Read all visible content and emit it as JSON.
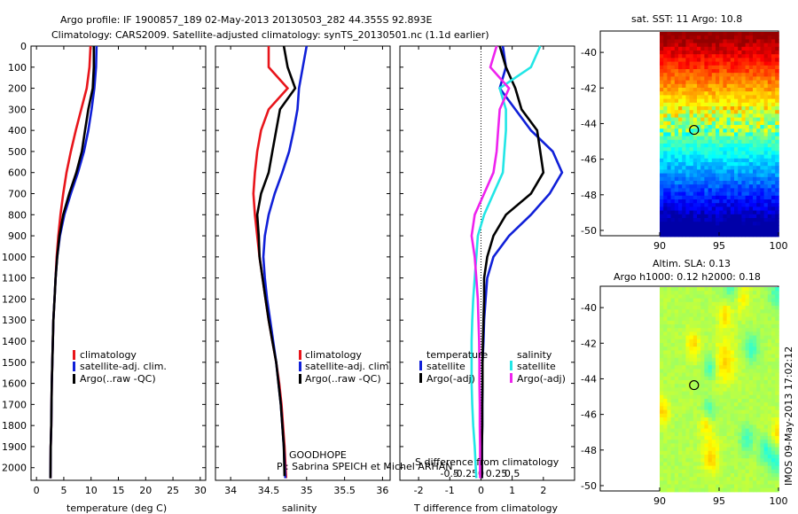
{
  "header": {
    "line1": "Argo profile: IF 1900857_189 02-May-2013 20130503_282 44.355S 92.893E",
    "line2": "Climatology: CARS2009. Satellite-adjusted climatology: synTS_20130501.nc (1.1d earlier)"
  },
  "watermark": "IMOS 09-May-2013 17:02:12",
  "colors": {
    "clim": "#e8151b",
    "sat": "#1020d8",
    "argo": "#000000",
    "cyan": "#22e6e6",
    "magenta": "#ee22ee"
  },
  "chart_data": [
    {
      "id": "temp",
      "type": "line",
      "xlabel": "temperature (deg C)",
      "xlim": [
        -1,
        31
      ],
      "xticks": [
        0,
        5,
        10,
        15,
        20,
        25,
        30
      ],
      "ylim": [
        2060,
        0
      ],
      "yticks": [
        0,
        100,
        200,
        300,
        400,
        500,
        600,
        700,
        800,
        900,
        1000,
        1100,
        1200,
        1300,
        1400,
        1500,
        1600,
        1700,
        1800,
        1900,
        2000
      ],
      "legend": [
        "climatology",
        "satellite-adj. clim.",
        "Argo(..raw -QC)"
      ],
      "series": [
        {
          "key": "clim",
          "x": [
            9.9,
            9.7,
            9.2,
            8.2,
            7.2,
            6.3,
            5.5,
            4.9,
            4.4,
            4.0,
            3.7,
            3.5,
            3.3,
            3.1,
            3.0,
            2.9,
            2.8,
            2.75,
            2.7,
            2.6,
            2.55
          ],
          "y": [
            0,
            100,
            200,
            300,
            400,
            500,
            600,
            700,
            800,
            900,
            1000,
            1100,
            1200,
            1300,
            1400,
            1500,
            1600,
            1700,
            1800,
            1900,
            2050
          ]
        },
        {
          "key": "sat",
          "x": [
            11.0,
            10.9,
            10.6,
            10.1,
            9.5,
            8.7,
            7.6,
            6.3,
            5.1,
            4.3,
            3.8,
            3.5,
            3.3,
            3.1,
            3.0,
            2.9,
            2.8,
            2.75,
            2.7,
            2.6,
            2.55
          ],
          "y": [
            0,
            100,
            200,
            300,
            400,
            500,
            600,
            700,
            800,
            900,
            1000,
            1100,
            1200,
            1300,
            1400,
            1500,
            1600,
            1700,
            1800,
            1900,
            2050
          ]
        },
        {
          "key": "argo",
          "x": [
            10.5,
            10.5,
            10.3,
            9.5,
            8.9,
            8.3,
            7.3,
            6.0,
            4.9,
            4.2,
            3.8,
            3.5,
            3.3,
            3.1,
            3.0,
            2.9,
            2.8,
            2.75,
            2.7,
            2.6,
            2.55
          ],
          "y": [
            0,
            100,
            200,
            300,
            400,
            500,
            600,
            700,
            800,
            900,
            1000,
            1100,
            1200,
            1300,
            1400,
            1500,
            1600,
            1700,
            1800,
            1900,
            2050
          ]
        }
      ]
    },
    {
      "id": "sal",
      "type": "line",
      "xlabel": "salinity",
      "xlim": [
        33.8,
        36.1
      ],
      "xticks": [
        34,
        34.5,
        35,
        35.5,
        36
      ],
      "ylim": [
        2060,
        0
      ],
      "legend": [
        "climatology",
        "satellite-adj. clim.",
        "Argo(..raw -QC)"
      ],
      "series": [
        {
          "key": "clim",
          "x": [
            34.5,
            34.5,
            34.75,
            34.5,
            34.4,
            34.35,
            34.32,
            34.3,
            34.32,
            34.35,
            34.38,
            34.42,
            34.46,
            34.5,
            34.55,
            34.6,
            34.64,
            34.67,
            34.69,
            34.71,
            34.73
          ],
          "y": [
            0,
            100,
            200,
            300,
            400,
            500,
            600,
            700,
            800,
            900,
            1000,
            1100,
            1200,
            1300,
            1400,
            1500,
            1600,
            1700,
            1800,
            1900,
            2050
          ]
        },
        {
          "key": "sat",
          "x": [
            35.0,
            34.95,
            34.9,
            34.88,
            34.83,
            34.77,
            34.68,
            34.58,
            34.5,
            34.45,
            34.43,
            34.45,
            34.48,
            34.52,
            34.56,
            34.6,
            34.63,
            34.66,
            34.68,
            34.7,
            34.72
          ],
          "y": [
            0,
            100,
            200,
            300,
            400,
            500,
            600,
            700,
            800,
            900,
            1000,
            1100,
            1200,
            1300,
            1400,
            1500,
            1600,
            1700,
            1800,
            1900,
            2050
          ]
        },
        {
          "key": "argo",
          "x": [
            34.7,
            34.75,
            34.85,
            34.65,
            34.6,
            34.55,
            34.5,
            34.4,
            34.35,
            34.37,
            34.38,
            34.42,
            34.46,
            34.5,
            34.55,
            34.6,
            34.63,
            34.66,
            34.68,
            34.7,
            34.71
          ],
          "y": [
            0,
            100,
            200,
            300,
            400,
            500,
            600,
            700,
            800,
            900,
            1000,
            1100,
            1200,
            1300,
            1400,
            1500,
            1600,
            1700,
            1800,
            1900,
            2040
          ]
        }
      ],
      "annotation": [
        "GOODHOPE",
        "PI: Sabrina SPEICH et Michel ARHAN"
      ]
    },
    {
      "id": "diff",
      "type": "line",
      "xlabel": "T difference from climatology",
      "xlim": [
        -2.6,
        3.0
      ],
      "xticks": [
        -2,
        -1,
        0,
        1,
        2
      ],
      "top_xlabel": "S difference from climatology",
      "top_xticklabels": [
        "-0.5",
        "-0.25",
        "0",
        "0.25",
        "0.5"
      ],
      "ylim": [
        2060,
        0
      ],
      "legend_groups": [
        {
          "title": "temperature",
          "items": [
            "satellite",
            "Argo(-adj)"
          ]
        },
        {
          "title": "salinity",
          "items": [
            "satellite",
            "Argo(-adj)"
          ]
        }
      ],
      "series": [
        {
          "key": "sat",
          "x": [
            0.7,
            0.8,
            0.6,
            1.1,
            1.6,
            2.3,
            2.6,
            2.2,
            1.6,
            0.9,
            0.4,
            0.2,
            0.15,
            0.1,
            0.08,
            0.05,
            0.05,
            0.04,
            0.04,
            0.03,
            0.03
          ],
          "y": [
            0,
            100,
            200,
            300,
            400,
            500,
            600,
            700,
            800,
            900,
            1000,
            1100,
            1200,
            1300,
            1400,
            1500,
            1600,
            1700,
            1800,
            1900,
            2050
          ]
        },
        {
          "key": "argo",
          "x": [
            0.6,
            0.8,
            1.1,
            1.3,
            1.8,
            1.9,
            2.0,
            1.6,
            0.8,
            0.4,
            0.2,
            0.1,
            0.1,
            0.08,
            0.06,
            0.05,
            0.05,
            0.04,
            0.04,
            0.03,
            0.03
          ],
          "y": [
            0,
            100,
            200,
            300,
            400,
            500,
            600,
            700,
            800,
            900,
            1000,
            1100,
            1200,
            1300,
            1400,
            1500,
            1600,
            1700,
            1800,
            1900,
            2050
          ]
        },
        {
          "key": "cyan",
          "x": [
            1.9,
            1.6,
            0.6,
            0.8,
            0.8,
            0.75,
            0.7,
            0.4,
            0.1,
            -0.1,
            -0.15,
            -0.2,
            -0.25,
            -0.28,
            -0.3,
            -0.3,
            -0.3,
            -0.28,
            -0.25,
            -0.2,
            -0.15
          ],
          "y": [
            0,
            100,
            200,
            300,
            400,
            500,
            600,
            700,
            800,
            900,
            1000,
            1100,
            1200,
            1300,
            1400,
            1500,
            1600,
            1700,
            1800,
            1900,
            2050
          ]
        },
        {
          "key": "magenta",
          "x": [
            0.5,
            0.3,
            0.9,
            0.6,
            0.55,
            0.5,
            0.4,
            0.1,
            -0.2,
            -0.3,
            -0.2,
            -0.15,
            -0.1,
            -0.08,
            -0.06,
            -0.05,
            -0.05,
            -0.04,
            -0.04,
            -0.03,
            -0.03
          ],
          "y": [
            0,
            100,
            200,
            300,
            400,
            500,
            600,
            700,
            800,
            900,
            1000,
            1100,
            1200,
            1300,
            1400,
            1500,
            1600,
            1700,
            1800,
            1900,
            2050
          ]
        }
      ]
    },
    {
      "id": "sst_map",
      "type": "heatmap",
      "title": "sat. SST: 11 Argo: 10.8",
      "xlim": [
        85,
        100
      ],
      "xticks": [
        90,
        95,
        100
      ],
      "ylim": [
        -50.3,
        -38.8
      ],
      "yticks": [
        -40,
        -42,
        -44,
        -46,
        -48,
        -50
      ],
      "marker": [
        92.893,
        -44.355
      ]
    },
    {
      "id": "sla_map",
      "type": "heatmap",
      "title": "Altim. SLA: 0.13",
      "subtitle": "Argo h1000: 0.12 h2000: 0.18",
      "xlim": [
        85,
        100
      ],
      "xticks": [
        90,
        95,
        100
      ],
      "ylim": [
        -50.3,
        -38.8
      ],
      "yticks": [
        -40,
        -42,
        -44,
        -46,
        -48,
        -50
      ],
      "marker": [
        92.893,
        -44.355
      ]
    }
  ]
}
